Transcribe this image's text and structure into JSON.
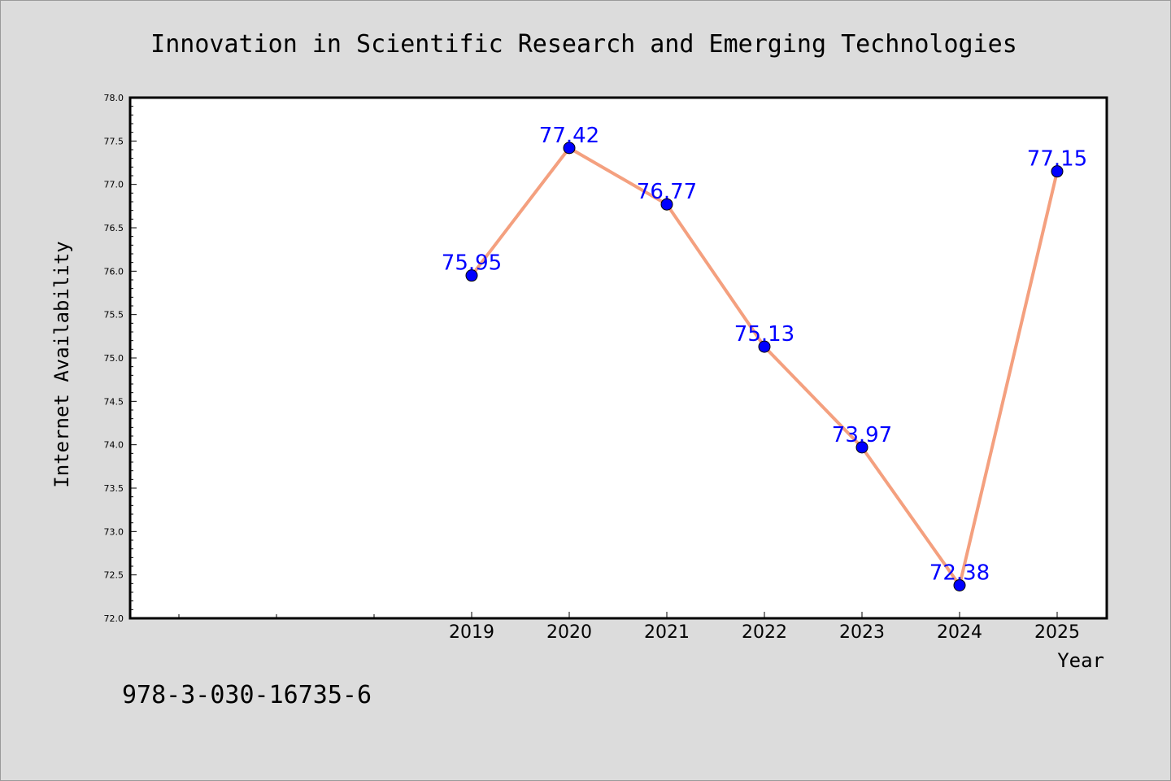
{
  "chart_data": {
    "type": "line",
    "title": "Innovation in Scientific Research and Emerging Technologies",
    "xlabel": "Year",
    "ylabel": "Internet Availability",
    "x": [
      "2019",
      "2020",
      "2021",
      "2022",
      "2023",
      "2024",
      "2025"
    ],
    "series": [
      {
        "values": [
          75.95,
          77.42,
          76.77,
          75.13,
          73.97,
          72.38,
          77.15
        ]
      }
    ],
    "data_labels": [
      "75.95",
      "77.42",
      "76.77",
      "75.13",
      "73.97",
      "72.38",
      "77.15"
    ],
    "ylim": [
      72.0,
      78.0
    ],
    "yticks": [
      "72.0",
      "72.5",
      "73.0",
      "73.5",
      "74.0",
      "74.5",
      "75.0",
      "75.5",
      "76.0",
      "76.5",
      "77.0",
      "77.5",
      "78.0"
    ],
    "x_slots_before_first": 3,
    "grid": false,
    "line_color": "#f4a07f",
    "marker_color": "#0000ff",
    "label_color": "#0000ff"
  },
  "footer": {
    "text": "978-3-030-16735-6"
  }
}
